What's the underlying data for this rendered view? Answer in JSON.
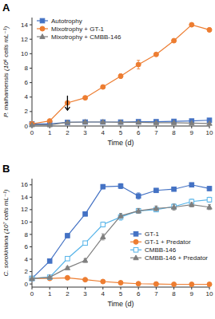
{
  "chart_data": [
    {
      "type": "line",
      "x_label": "Time (d)",
      "y_label": "P. malhamensis (10⁶ cells mL⁻¹)",
      "xlim": [
        0,
        10
      ],
      "ylim": [
        0,
        15
      ],
      "xticks": [
        0,
        1,
        2,
        3,
        4,
        5,
        6,
        7,
        8,
        9,
        10
      ],
      "yticks": [
        0,
        2,
        4,
        6,
        8,
        10,
        12,
        14
      ],
      "legend": "upper left",
      "x": [
        0,
        1,
        2,
        3,
        4,
        5,
        6,
        7,
        8,
        9,
        10
      ],
      "series": [
        {
          "name": "Autotrophy",
          "color": "#4472C4",
          "marker": "square",
          "line_style": "solid",
          "values": [
            0.3,
            0.3,
            0.5,
            0.55,
            0.55,
            0.55,
            0.6,
            0.6,
            0.65,
            0.7,
            0.8
          ],
          "errors": [
            0.04,
            0.04,
            0.05,
            0.05,
            0.04,
            0.04,
            0.04,
            0.04,
            0.04,
            0.05,
            0.05
          ]
        },
        {
          "name": "Mixotrophy + GT-1",
          "color": "#ED7D31",
          "marker": "circle",
          "line_style": "solid",
          "values": [
            0.3,
            0.7,
            3.2,
            3.9,
            5.4,
            6.9,
            8.5,
            9.9,
            11.8,
            14.0,
            13.3
          ],
          "errors": [
            0.04,
            0.08,
            0.15,
            0.15,
            0.2,
            0.3,
            0.6,
            0.2,
            0.2,
            0.25,
            0.25
          ]
        },
        {
          "name": "Mixotrophy + CMBB-146",
          "color": "#7F7F7F",
          "marker": "triangle",
          "line_style": "solid",
          "values": [
            0.15,
            0.15,
            0.5,
            0.55,
            0.55,
            0.5,
            0.5,
            0.45,
            0.45,
            0.4,
            0.35
          ],
          "errors": [
            0.03,
            0.03,
            0.05,
            0.05,
            0.05,
            0.05,
            0.05,
            0.05,
            0.05,
            0.04,
            0.04
          ]
        }
      ],
      "annotations": [
        {
          "text": "A"
        },
        {
          "x": 2,
          "y": 2.2,
          "y_from": 4.2
        }
      ]
    },
    {
      "type": "line",
      "x_label": "Time (d)",
      "y_label": "C. sorokiniana (10⁷ cells mL⁻¹)",
      "xlim": [
        0,
        10
      ],
      "ylim": [
        -0.5,
        17
      ],
      "xticks": [
        0,
        1,
        2,
        3,
        4,
        5,
        6,
        7,
        8,
        9,
        10
      ],
      "yticks": [
        0,
        2,
        4,
        6,
        8,
        10,
        12,
        14,
        16
      ],
      "legend": "center right",
      "x": [
        0,
        1,
        2,
        3,
        4,
        5,
        6,
        7,
        8,
        9,
        10
      ],
      "series": [
        {
          "name": "GT-1",
          "color": "#4472C4",
          "marker": "square",
          "line_style": "solid",
          "values": [
            0.9,
            3.7,
            7.8,
            11.3,
            15.7,
            15.8,
            14.2,
            15.1,
            15.3,
            16.0,
            15.4
          ],
          "errors": [
            0.1,
            0.2,
            0.3,
            0.3,
            0.35,
            0.4,
            0.5,
            0.3,
            0.3,
            0.3,
            0.3
          ]
        },
        {
          "name": "GT-1 + Predator",
          "color": "#ED7D31",
          "marker": "circle",
          "line_style": "solid",
          "values": [
            0.9,
            0.9,
            1.0,
            0.7,
            0.4,
            0.2,
            0.05,
            0.0,
            -0.05,
            -0.05,
            -0.05
          ],
          "errors": [
            0.05,
            0.05,
            0.05,
            0.05,
            0.04,
            0.03,
            0.02,
            0.02,
            0.02,
            0.02,
            0.02
          ]
        },
        {
          "name": "CMBB-146",
          "color": "#56B4E9",
          "marker": "open-square",
          "line_style": "solid",
          "values": [
            0.9,
            1.1,
            4.1,
            6.6,
            9.6,
            10.8,
            11.8,
            12.0,
            12.5,
            13.3,
            13.6
          ],
          "errors": [
            0.1,
            0.1,
            0.3,
            0.3,
            0.4,
            0.5,
            0.35,
            0.3,
            0.4,
            0.4,
            0.4
          ]
        },
        {
          "name": "CMBB-146 + Predator",
          "color": "#7F7F7F",
          "marker": "triangle",
          "line_style": "solid",
          "values": [
            0.9,
            1.1,
            2.6,
            3.8,
            7.6,
            11.0,
            11.8,
            12.2,
            12.4,
            12.8,
            12.4
          ],
          "errors": [
            0.1,
            0.1,
            0.2,
            0.3,
            0.5,
            0.4,
            0.4,
            0.4,
            0.5,
            0.35,
            0.4
          ]
        }
      ],
      "annotations": [
        {
          "text": "B"
        }
      ]
    }
  ]
}
